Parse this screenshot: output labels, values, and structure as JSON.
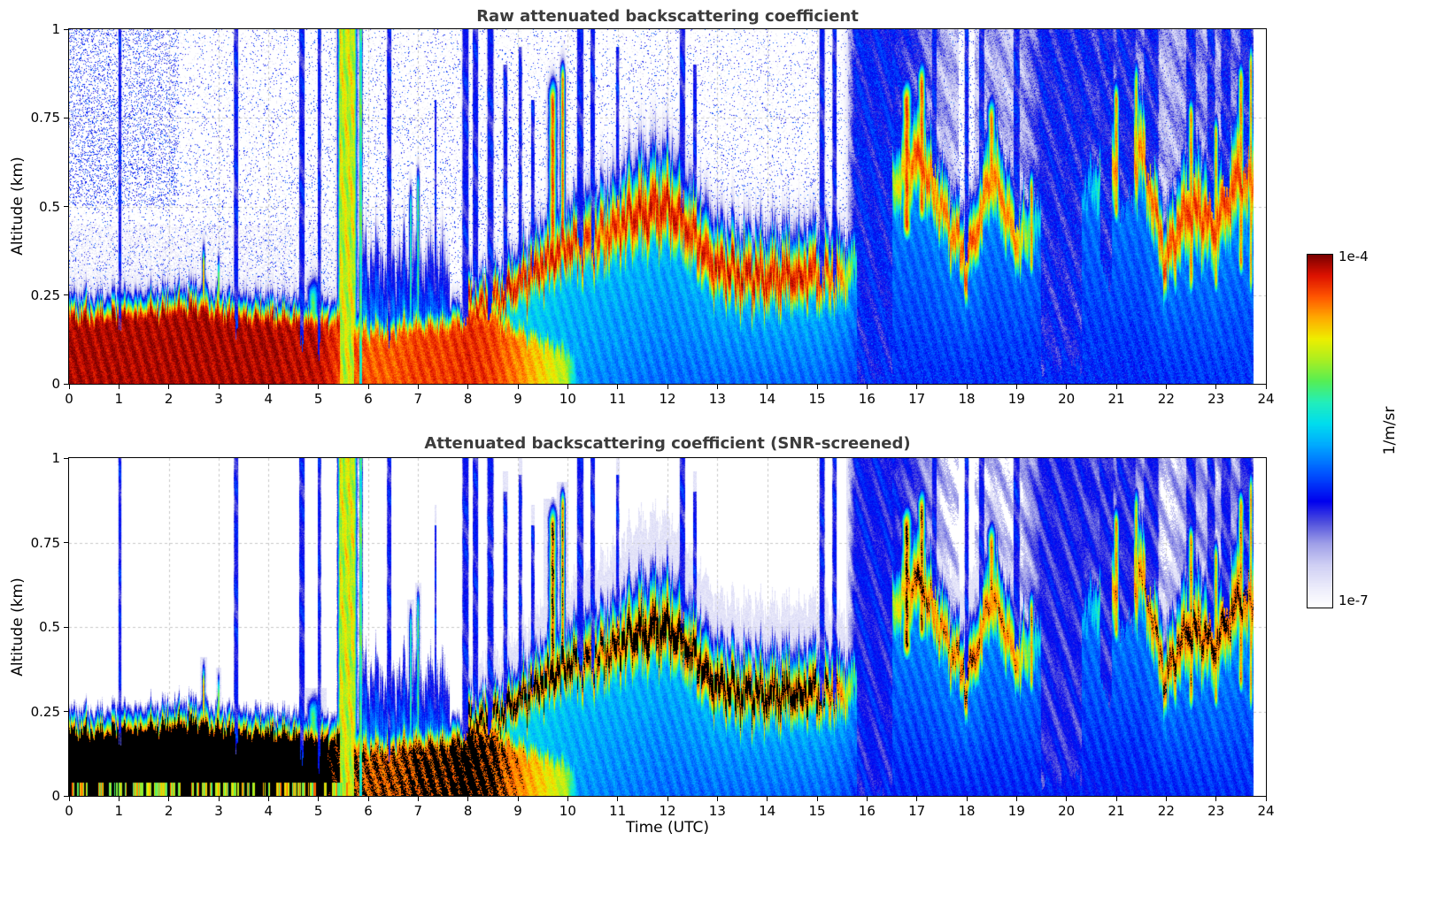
{
  "chart_data": {
    "type": "heatmap",
    "panels": [
      {
        "title": "Raw attenuated backscattering coefficient",
        "screened": false
      },
      {
        "title": "Attenuated backscattering coefficient (SNR-screened)",
        "screened": true
      }
    ],
    "xlabel": "Time (UTC)",
    "ylabel": "Altitude (km)",
    "xlim": [
      0,
      24
    ],
    "ylim": [
      0,
      1
    ],
    "xticks": [
      0,
      1,
      2,
      3,
      4,
      5,
      6,
      7,
      8,
      9,
      10,
      11,
      12,
      13,
      14,
      15,
      16,
      17,
      18,
      19,
      20,
      21,
      22,
      23,
      24
    ],
    "yticks": [
      0,
      0.25,
      0.5,
      0.75,
      1
    ],
    "ytick_labels": [
      "0",
      "0.25",
      "0.5",
      "0.75",
      "1"
    ],
    "grid": "dotted",
    "colorbar": {
      "top_label": "1e-4",
      "bottom_label": "1e-7",
      "unit": "1/m/sr",
      "stops": [
        [
          0.0,
          "#ffffff"
        ],
        [
          0.05,
          "#eeeefb"
        ],
        [
          0.12,
          "#cfcff4"
        ],
        [
          0.18,
          "#9f9fe8"
        ],
        [
          0.24,
          "#5050dd"
        ],
        [
          0.3,
          "#0000ee"
        ],
        [
          0.38,
          "#0055ff"
        ],
        [
          0.46,
          "#00aaff"
        ],
        [
          0.52,
          "#00ddee"
        ],
        [
          0.58,
          "#22eebb"
        ],
        [
          0.64,
          "#55ee55"
        ],
        [
          0.7,
          "#aaee22"
        ],
        [
          0.76,
          "#eeee00"
        ],
        [
          0.82,
          "#ffaa00"
        ],
        [
          0.88,
          "#ff5500"
        ],
        [
          0.94,
          "#dd1100"
        ],
        [
          1.0,
          "#770000"
        ]
      ]
    },
    "model": {
      "t_step": 0.5,
      "data_end": 23.75,
      "black_threshold": 0.885,
      "screen_threshold": 0.13,
      "halo_threshold": 0.07,
      "surf_h": [
        0.17,
        0.17,
        0.18,
        0.18,
        0.19,
        0.2,
        0.18,
        0.17,
        0.17,
        0.16,
        0.15,
        0.16,
        0.12,
        0.13,
        0.14,
        0.14,
        0.16,
        0.17,
        0.12,
        0.09,
        0.06,
        0.05,
        0.05,
        0.05,
        0.05,
        0.05,
        0.05,
        0.05,
        0.05,
        0.05,
        0.05,
        0.04,
        0,
        0,
        0,
        0,
        0,
        0,
        0,
        0,
        0,
        0,
        0,
        0,
        0,
        0,
        0,
        0,
        0
      ],
      "surf_i": [
        0.97,
        0.97,
        0.97,
        0.97,
        0.97,
        0.97,
        0.97,
        0.97,
        0.97,
        0.96,
        0.96,
        0.9,
        0.88,
        0.88,
        0.9,
        0.9,
        0.92,
        0.9,
        0.85,
        0.78,
        0.7,
        0,
        0,
        0,
        0,
        0,
        0,
        0,
        0,
        0,
        0,
        0,
        0,
        0,
        0,
        0,
        0,
        0,
        0,
        0,
        0,
        0,
        0,
        0,
        0,
        0,
        0,
        0,
        0
      ],
      "band_c": [
        0,
        0,
        0,
        0,
        0,
        0,
        0,
        0,
        0,
        0,
        0,
        0,
        0,
        0,
        0,
        0,
        0.2,
        0.24,
        0.28,
        0.33,
        0.38,
        0.4,
        0.44,
        0.48,
        0.5,
        0.42,
        0.33,
        0.3,
        0.3,
        0.3,
        0.31,
        0.3,
        0.35,
        0.55,
        0.65,
        0.5,
        0.33,
        0.6,
        0.4,
        0.45,
        0.5,
        0.55,
        0.6,
        0.65,
        0.35,
        0.5,
        0.45,
        0.6,
        0.5
      ],
      "band_w": [
        0,
        0,
        0,
        0,
        0,
        0,
        0,
        0,
        0,
        0,
        0,
        0,
        0,
        0,
        0,
        0,
        0.05,
        0.05,
        0.06,
        0.07,
        0.07,
        0.08,
        0.09,
        0.1,
        0.1,
        0.09,
        0.08,
        0.08,
        0.08,
        0.08,
        0.08,
        0.07,
        0.05,
        0.08,
        0.1,
        0.08,
        0.07,
        0.1,
        0.08,
        0.06,
        0.05,
        0.06,
        0.1,
        0.1,
        0.08,
        0.12,
        0.1,
        0.12,
        0.1
      ],
      "band_i": [
        0,
        0,
        0,
        0,
        0,
        0,
        0,
        0,
        0,
        0,
        0,
        0,
        0,
        0,
        0,
        0,
        0.95,
        0.95,
        0.95,
        0.95,
        0.95,
        0.9,
        0.92,
        0.95,
        0.95,
        0.93,
        0.95,
        0.95,
        0.95,
        0.95,
        0.93,
        0.85,
        0.4,
        0.7,
        0.9,
        0.85,
        0.9,
        0.85,
        0.85,
        0.5,
        0.4,
        0.5,
        0.85,
        0.85,
        0.9,
        0.9,
        0.9,
        0.9,
        0.85
      ],
      "fill_ground": [
        0.5,
        0.5,
        0.5,
        0.5,
        0.5,
        0.5,
        0.5,
        0.5,
        0.5,
        0.5,
        0.5,
        0.55,
        0.62,
        0.6,
        0.6,
        0.58,
        0.55,
        0.52,
        0.5,
        0.47,
        0.45,
        0.43,
        0.42,
        0.41,
        0.4,
        0.4,
        0.4,
        0.4,
        0.4,
        0.4,
        0.4,
        0.38,
        0.34,
        0.33,
        0.33,
        0.33,
        0.33,
        0.33,
        0.33,
        0.33,
        0.32,
        0.32,
        0.32,
        0.32,
        0.33,
        0.34,
        0.34,
        0.34,
        0.34
      ],
      "fill_top": [
        0.5,
        0.5,
        0.5,
        0.5,
        0.5,
        0.5,
        0.5,
        0.5,
        0.5,
        0.5,
        0.5,
        0.5,
        0.52,
        0.52,
        0.52,
        0.52,
        0.52,
        0.52,
        0.52,
        0.52,
        0.5,
        0.5,
        0.5,
        0.5,
        0.5,
        0.5,
        0.5,
        0.5,
        0.5,
        0.5,
        0.5,
        0.48,
        0.42,
        0.44,
        0.45,
        0.45,
        0.45,
        0.45,
        0.42,
        0.42,
        0.4,
        0.42,
        0.44,
        0.44,
        0.45,
        0.45,
        0.45,
        0.45,
        0.45
      ],
      "cloudiness": [
        0,
        0,
        0,
        0,
        0,
        0,
        0,
        0,
        0,
        0,
        0,
        0,
        0,
        0,
        0,
        0,
        0,
        0,
        0,
        0,
        0,
        0,
        0,
        0,
        0,
        0,
        0,
        0,
        0,
        0,
        0,
        0.2,
        1,
        1,
        0.8,
        0.5,
        0.35,
        0.5,
        0.4,
        0.85,
        1,
        0.9,
        0.7,
        0.6,
        0.45,
        0.6,
        0.5,
        0.7,
        0.6
      ],
      "clouds": [
        [
          1.02,
          0.03,
          0.18,
          1,
          0.3
        ],
        [
          3.35,
          0.04,
          0.18,
          1,
          0.3
        ],
        [
          4.67,
          0.05,
          0.12,
          1,
          0.3
        ],
        [
          5.02,
          0.03,
          0.12,
          1,
          0.3
        ],
        [
          6.42,
          0.04,
          0.1,
          1,
          0.3
        ],
        [
          7.35,
          0.02,
          0.25,
          0.8,
          0.3
        ],
        [
          7.95,
          0.06,
          0.18,
          1,
          0.3
        ],
        [
          8.15,
          0.05,
          0.28,
          1,
          0.3
        ],
        [
          8.45,
          0.06,
          0.22,
          1,
          0.3
        ],
        [
          8.75,
          0.04,
          0.28,
          0.9,
          0.3
        ],
        [
          9.05,
          0.03,
          0.3,
          0.95,
          0.3
        ],
        [
          9.3,
          0.03,
          0.3,
          0.8,
          0.3
        ],
        [
          10.25,
          0.06,
          0.38,
          1,
          0.3
        ],
        [
          10.5,
          0.04,
          0.38,
          1,
          0.3
        ],
        [
          11.0,
          0.03,
          0.5,
          0.95,
          0.3
        ],
        [
          12.3,
          0.05,
          0.5,
          1,
          0.3
        ],
        [
          12.55,
          0.03,
          0.5,
          0.9,
          0.3
        ],
        [
          15.1,
          0.05,
          0.3,
          1,
          0.3
        ],
        [
          15.35,
          0.04,
          0.3,
          1,
          0.3
        ],
        [
          16.15,
          0.45,
          0,
          1,
          0.3
        ],
        [
          17.35,
          0.05,
          0.6,
          1,
          0.3
        ],
        [
          18.0,
          0.04,
          0.38,
          1,
          0.3
        ],
        [
          18.3,
          0.05,
          0.6,
          1,
          0.3
        ],
        [
          19.0,
          0.06,
          0.45,
          1,
          0.3
        ],
        [
          19.9,
          0.5,
          0.05,
          1,
          0.28
        ],
        [
          20.8,
          0.15,
          0.3,
          1,
          0.28
        ],
        [
          21.2,
          0.2,
          0.5,
          1,
          0.28
        ],
        [
          21.7,
          0.15,
          0.6,
          1,
          0.28
        ],
        [
          22.5,
          0.1,
          0.55,
          1,
          0.28
        ],
        [
          22.9,
          0.08,
          0.5,
          1,
          0.28
        ],
        [
          23.2,
          0.1,
          0.55,
          1,
          0.28
        ],
        [
          23.6,
          0.12,
          0.6,
          1,
          0.28
        ]
      ],
      "rain_columns": [
        [
          5.58,
          0.14,
          0.72
        ],
        [
          5.85,
          0.025,
          0.6
        ]
      ],
      "plumes": [
        [
          2.7,
          0.03,
          0.15,
          0.33,
          0.85
        ],
        [
          3.0,
          0.02,
          0.15,
          0.3,
          0.8
        ],
        [
          4.9,
          0.12,
          0.17,
          0.24,
          0.62
        ],
        [
          6.85,
          0.03,
          0.1,
          0.5,
          0.6
        ],
        [
          7.0,
          0.03,
          0.1,
          0.55,
          0.65
        ],
        [
          9.7,
          0.08,
          0.35,
          0.8,
          0.9
        ],
        [
          9.9,
          0.05,
          0.4,
          0.85,
          0.88
        ],
        [
          16.8,
          0.1,
          0.45,
          0.8,
          0.9
        ],
        [
          17.1,
          0.08,
          0.5,
          0.85,
          0.88
        ],
        [
          18.5,
          0.08,
          0.55,
          0.75,
          0.85
        ],
        [
          19.3,
          0.05,
          0.35,
          0.55,
          0.85
        ],
        [
          21.0,
          0.06,
          0.5,
          0.8,
          0.85
        ],
        [
          21.4,
          0.05,
          0.55,
          0.85,
          0.8
        ],
        [
          22.5,
          0.06,
          0.3,
          0.75,
          0.85
        ],
        [
          23.0,
          0.05,
          0.3,
          0.7,
          0.82
        ],
        [
          23.5,
          0.06,
          0.35,
          0.85,
          0.85
        ],
        [
          23.7,
          0.04,
          0.3,
          0.9,
          0.85
        ]
      ]
    }
  }
}
